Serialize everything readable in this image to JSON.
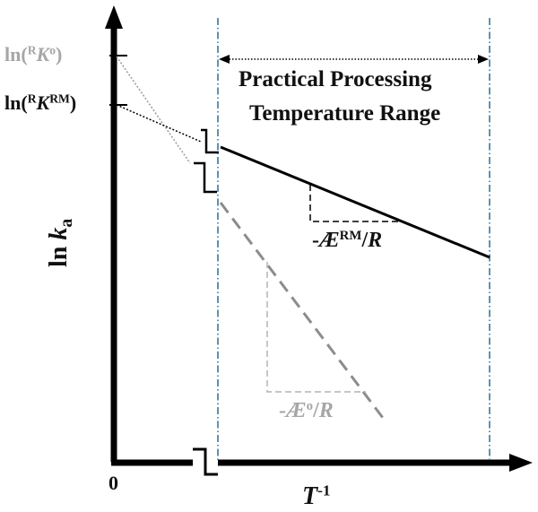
{
  "labels": {
    "ln_k0_prefix": "ln(",
    "ln_k0_sup": "R",
    "ln_k0_K": "K",
    "ln_k0_sup2": "o",
    "ln_k0_suffix": ")",
    "ln_krm_prefix": "ln(",
    "ln_krm_sup": "R",
    "ln_krm_K": "K",
    "ln_krm_sup2": "RM",
    "ln_krm_suffix": ")",
    "range_line1": "Practical Processing",
    "range_line2": "Temperature Range",
    "slope_rm_prefix": "-",
    "slope_rm_E": "Æ",
    "slope_rm_sup": "RM",
    "slope_rm_suffix": "/",
    "slope_rm_R": "R",
    "slope_o_prefix": "-",
    "slope_o_E": "Æ",
    "slope_o_sup": "o",
    "slope_o_suffix": "/",
    "slope_o_R": "R",
    "y_axis_ln": "ln ",
    "y_axis_k": "k",
    "y_axis_sub": "a",
    "x_axis_T": "T",
    "x_axis_sup": "-1",
    "origin": "0"
  },
  "colors": {
    "black": "#000000",
    "gray": "#a6a6a6",
    "dash_gray": "#8c8c8c",
    "guide_blue": "#2a6f97"
  }
}
